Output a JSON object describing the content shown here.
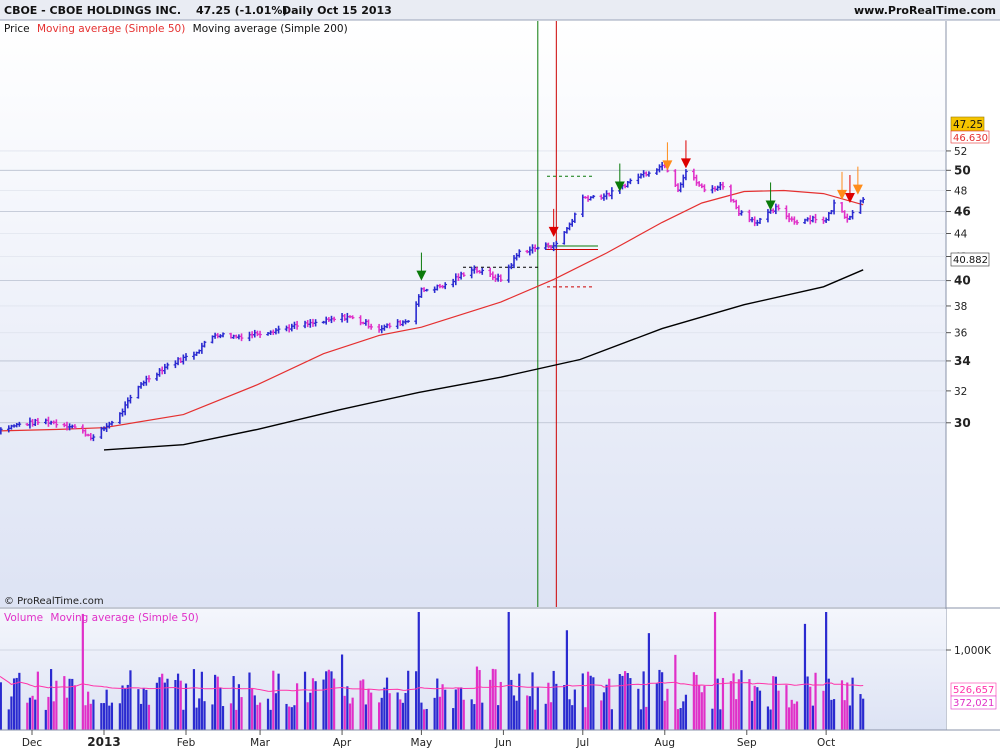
{
  "header": {
    "symbol_title": "CBOE - CBOE HOLDINGS INC.",
    "quote": "47.25 (-1.01%)",
    "period_date": "Daily  Oct 15 2013",
    "website": "www.ProRealTime.com"
  },
  "legend": {
    "price": "Price",
    "ma50": "Moving average (Simple 50)",
    "ma200": "Moving average (Simple 200)",
    "volume": "Volume",
    "volume_ma": "Moving average (Simple 50)"
  },
  "copyright": "© ProRealTime.com",
  "colors": {
    "up_bar": "#2a2ad0",
    "down_bar": "#e030c8",
    "ma50": "#e53030",
    "ma200": "#000000",
    "volume_ma": "#ff33aa",
    "panel_top": "#ffffff",
    "panel_bottom": "#dfe5f5",
    "vline_green": "#0a7a0a",
    "vline_red": "#cc0000",
    "arrow_green": "#0a7a0a",
    "arrow_red": "#dd0000",
    "arrow_orange": "#ff8c1a",
    "last_price_box": "#f5c400"
  },
  "chart_data": [
    {
      "type": "ohlc",
      "panel": "price",
      "x_axis_labels": [
        "Dec",
        "2013",
        "Feb",
        "Mar",
        "Apr",
        "May",
        "Jun",
        "Jul",
        "Aug",
        "Sep",
        "Oct"
      ],
      "y_ticks": [
        30,
        32,
        34,
        36,
        38,
        40,
        42,
        44,
        46,
        48,
        50,
        52
      ],
      "y_major_ticks": [
        30,
        34,
        40,
        46,
        50
      ],
      "ylim": [
        28.3,
        52.8
      ],
      "grid": true,
      "last_price": "47.25",
      "ma50_last": "46.630",
      "ma200_last": "40.882",
      "close_path": [
        {
          "date": "2012-11-19",
          "close": 29.4
        },
        {
          "date": "2012-11-30",
          "close": 29.9
        },
        {
          "date": "2012-12-10",
          "close": 30.1
        },
        {
          "date": "2012-12-20",
          "close": 29.8
        },
        {
          "date": "2012-12-28",
          "close": 29.1
        },
        {
          "date": "2013-01-07",
          "close": 30.5
        },
        {
          "date": "2013-01-15",
          "close": 32.5
        },
        {
          "date": "2013-01-25",
          "close": 33.7
        },
        {
          "date": "2013-02-04",
          "close": 34.5
        },
        {
          "date": "2013-02-12",
          "close": 35.9
        },
        {
          "date": "2013-02-20",
          "close": 35.7
        },
        {
          "date": "2013-03-04",
          "close": 36.1
        },
        {
          "date": "2013-03-15",
          "close": 36.5
        },
        {
          "date": "2013-03-25",
          "close": 36.8
        },
        {
          "date": "2013-04-03",
          "close": 37.2
        },
        {
          "date": "2013-04-15",
          "close": 36.3
        },
        {
          "date": "2013-04-26",
          "close": 36.9
        },
        {
          "date": "2013-05-01",
          "close": 39.2
        },
        {
          "date": "2013-05-10",
          "close": 39.6
        },
        {
          "date": "2013-05-20",
          "close": 41.0
        },
        {
          "date": "2013-05-31",
          "close": 40.1
        },
        {
          "date": "2013-06-07",
          "close": 42.4
        },
        {
          "date": "2013-06-17",
          "close": 42.9
        },
        {
          "date": "2013-06-21",
          "close": 43.0
        },
        {
          "date": "2013-06-27",
          "close": 45.2
        },
        {
          "date": "2013-07-01",
          "close": 47.3
        },
        {
          "date": "2013-07-10",
          "close": 47.5
        },
        {
          "date": "2013-07-22",
          "close": 49.4
        },
        {
          "date": "2013-08-01",
          "close": 50.6
        },
        {
          "date": "2013-08-06",
          "close": 48.2
        },
        {
          "date": "2013-08-09",
          "close": 49.9
        },
        {
          "date": "2013-08-16",
          "close": 48.0
        },
        {
          "date": "2013-08-23",
          "close": 48.5
        },
        {
          "date": "2013-08-29",
          "close": 46.0
        },
        {
          "date": "2013-09-05",
          "close": 45.0
        },
        {
          "date": "2013-09-12",
          "close": 46.3
        },
        {
          "date": "2013-09-19",
          "close": 45.1
        },
        {
          "date": "2013-09-26",
          "close": 45.4
        },
        {
          "date": "2013-10-01",
          "close": 45.2
        },
        {
          "date": "2013-10-04",
          "close": 46.7
        },
        {
          "date": "2013-10-09",
          "close": 45.4
        },
        {
          "date": "2013-10-15",
          "close": 47.25
        }
      ],
      "ma50": [
        {
          "date": "2012-11-19",
          "value": 29.5
        },
        {
          "date": "2012-12-15",
          "value": 29.6
        },
        {
          "date": "2013-01-01",
          "value": 29.7
        },
        {
          "date": "2013-01-31",
          "value": 30.5
        },
        {
          "date": "2013-02-28",
          "value": 32.4
        },
        {
          "date": "2013-03-25",
          "value": 34.5
        },
        {
          "date": "2013-04-15",
          "value": 35.8
        },
        {
          "date": "2013-05-01",
          "value": 36.4
        },
        {
          "date": "2013-05-31",
          "value": 38.3
        },
        {
          "date": "2013-06-20",
          "value": 40.1
        },
        {
          "date": "2013-07-10",
          "value": 42.3
        },
        {
          "date": "2013-07-31",
          "value": 45.0
        },
        {
          "date": "2013-08-15",
          "value": 46.8
        },
        {
          "date": "2013-08-31",
          "value": 47.9
        },
        {
          "date": "2013-09-15",
          "value": 48.0
        },
        {
          "date": "2013-09-30",
          "value": 47.7
        },
        {
          "date": "2013-10-15",
          "value": 46.63
        }
      ],
      "ma200": [
        {
          "date": "2013-01-01",
          "value": 28.4
        },
        {
          "date": "2013-01-31",
          "value": 28.7
        },
        {
          "date": "2013-02-28",
          "value": 29.6
        },
        {
          "date": "2013-03-31",
          "value": 30.8
        },
        {
          "date": "2013-04-30",
          "value": 31.9
        },
        {
          "date": "2013-05-31",
          "value": 32.9
        },
        {
          "date": "2013-06-30",
          "value": 34.1
        },
        {
          "date": "2013-07-31",
          "value": 36.3
        },
        {
          "date": "2013-08-31",
          "value": 38.1
        },
        {
          "date": "2013-09-30",
          "value": 39.5
        },
        {
          "date": "2013-10-15",
          "value": 40.88
        }
      ],
      "signal_arrows": [
        {
          "date": "2013-05-01",
          "price": 40.0,
          "direction": "down",
          "color": "green"
        },
        {
          "date": "2013-06-20",
          "price": 43.7,
          "direction": "down",
          "color": "red"
        },
        {
          "date": "2013-07-15",
          "price": 47.9,
          "direction": "down",
          "color": "green"
        },
        {
          "date": "2013-08-02",
          "price": 50.0,
          "direction": "down",
          "color": "orange"
        },
        {
          "date": "2013-08-09",
          "price": 50.2,
          "direction": "down",
          "color": "red"
        },
        {
          "date": "2013-09-10",
          "price": 46.1,
          "direction": "down",
          "color": "green"
        },
        {
          "date": "2013-10-07",
          "price": 47.1,
          "direction": "down",
          "color": "orange"
        },
        {
          "date": "2013-10-10",
          "price": 46.8,
          "direction": "down",
          "color": "red"
        },
        {
          "date": "2013-10-13",
          "price": 47.6,
          "direction": "down",
          "color": "orange"
        }
      ],
      "vertical_markers": [
        {
          "date": "2013-06-14",
          "color": "green"
        },
        {
          "date": "2013-06-21",
          "color": "red"
        }
      ]
    },
    {
      "type": "bar",
      "panel": "volume",
      "y_ticks": [
        "1,000K"
      ],
      "ylim": [
        0,
        1550
      ],
      "units": "K",
      "volume_last": "372,021",
      "volume_ma_last": "526,657"
    }
  ]
}
